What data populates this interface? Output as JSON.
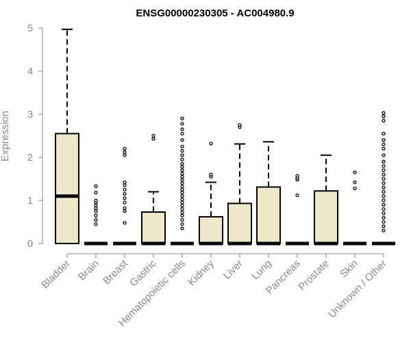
{
  "chart_data": {
    "type": "boxplot",
    "title": "ENSG00000230305 - AC004980.9",
    "xlabel": "",
    "ylabel": "Expression",
    "ylim": [
      0,
      5
    ],
    "yticks": [
      0,
      1,
      2,
      3,
      4,
      5
    ],
    "box_fill": "#ede7cc",
    "outline_color": "#000000",
    "axis_color": "#8a8a8a",
    "categories": [
      "Bladder",
      "Brain",
      "Breast",
      "Gastric",
      "Hematopoietic cells",
      "Kidney",
      "Liver",
      "Lung",
      "Pancreas",
      "Prostate",
      "Skin",
      "Unknown / Other"
    ],
    "boxes": [
      {
        "category": "Bladder",
        "whisker_low": 0,
        "q1": 0,
        "median": 1.1,
        "q3": 2.55,
        "whisker_high": 4.97,
        "outliers": []
      },
      {
        "category": "Brain",
        "whisker_low": 0,
        "q1": 0,
        "median": 0,
        "q3": 0,
        "whisker_high": 0,
        "outliers": [
          0.45,
          0.55,
          0.65,
          0.75,
          0.82,
          0.88,
          0.95,
          1.0,
          1.18,
          1.33
        ]
      },
      {
        "category": "Breast",
        "whisker_low": 0,
        "q1": 0,
        "median": 0,
        "q3": 0,
        "whisker_high": 0,
        "outliers": [
          0.48,
          0.75,
          0.82,
          0.95,
          1.05,
          1.15,
          1.25,
          1.35,
          1.42,
          2.05,
          2.12,
          2.2
        ]
      },
      {
        "category": "Gastric",
        "whisker_low": 0,
        "q1": 0,
        "median": 0,
        "q3": 0.73,
        "whisker_high": 1.2,
        "outliers": [
          2.43,
          2.5
        ]
      },
      {
        "category": "Hematopoietic cells",
        "whisker_low": 0,
        "q1": 0,
        "median": 0,
        "q3": 0,
        "whisker_high": 0,
        "outliers": [
          0.35,
          0.45,
          0.55,
          0.65,
          0.72,
          0.8,
          0.88,
          0.95,
          1.02,
          1.1,
          1.18,
          1.25,
          1.32,
          1.4,
          1.48,
          1.55,
          1.62,
          1.7,
          1.78,
          1.85,
          1.95,
          2.05,
          2.15,
          2.25,
          2.4,
          2.55,
          2.65,
          2.78,
          2.9
        ]
      },
      {
        "category": "Kidney",
        "whisker_low": 0,
        "q1": 0,
        "median": 0,
        "q3": 0.62,
        "whisker_high": 1.42,
        "outliers": [
          1.55,
          1.6,
          2.32
        ]
      },
      {
        "category": "Liver",
        "whisker_low": 0,
        "q1": 0,
        "median": 0,
        "q3": 0.93,
        "whisker_high": 2.31,
        "outliers": [
          2.7,
          2.75
        ]
      },
      {
        "category": "Lung",
        "whisker_low": 0,
        "q1": 0,
        "median": 0,
        "q3": 1.31,
        "whisker_high": 2.36,
        "outliers": []
      },
      {
        "category": "Pancreas",
        "whisker_low": 0,
        "q1": 0,
        "median": 0,
        "q3": 0,
        "whisker_high": 0,
        "outliers": [
          1.12,
          1.48,
          1.52,
          1.57
        ]
      },
      {
        "category": "Prostate",
        "whisker_low": 0,
        "q1": 0,
        "median": 0,
        "q3": 1.22,
        "whisker_high": 2.05,
        "outliers": []
      },
      {
        "category": "Skin",
        "whisker_low": 0,
        "q1": 0,
        "median": 0,
        "q3": 0,
        "whisker_high": 0,
        "outliers": [
          1.28,
          1.42,
          1.65
        ]
      },
      {
        "category": "Unknown / Other",
        "whisker_low": 0,
        "q1": 0,
        "median": 0,
        "q3": 0,
        "whisker_high": 0,
        "outliers": [
          0.3,
          0.4,
          0.5,
          0.6,
          0.7,
          0.8,
          0.9,
          1.0,
          1.1,
          1.2,
          1.3,
          1.4,
          1.5,
          1.6,
          1.7,
          1.8,
          1.9,
          2.05,
          2.2,
          2.3,
          2.4,
          2.55,
          2.85,
          2.95,
          3.03
        ]
      }
    ]
  }
}
